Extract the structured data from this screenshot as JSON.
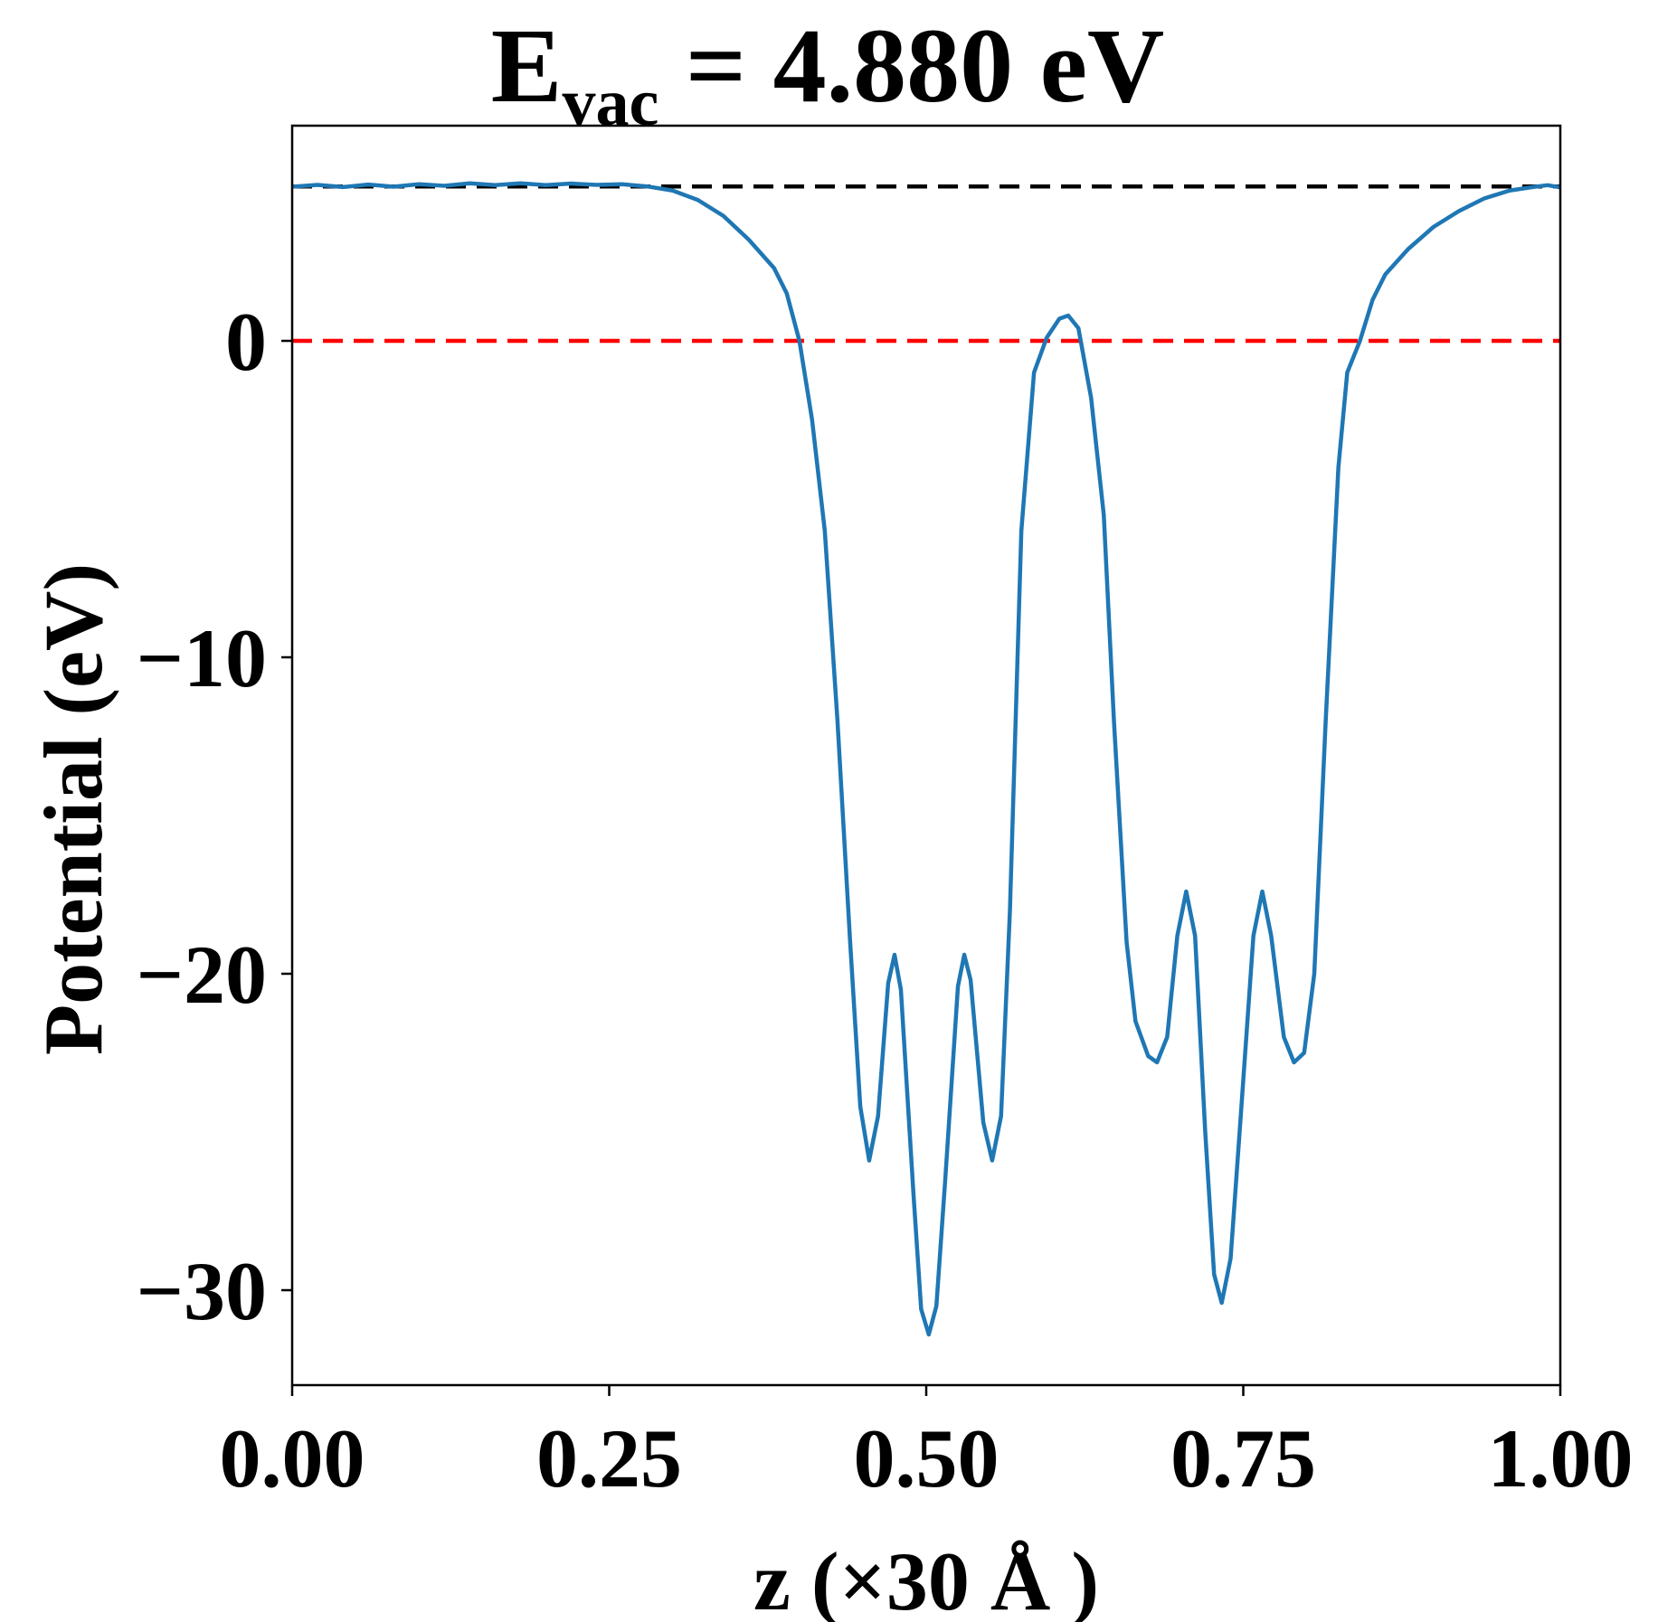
{
  "chart_data": {
    "type": "line",
    "title_main": "E",
    "title_sub": "vac",
    "title_rest": " = 4.880 eV",
    "xlabel": "z (×30 Å )",
    "ylabel": "Potential (eV)",
    "xlim": [
      0.0,
      1.0
    ],
    "ylim": [
      -33,
      6.8
    ],
    "x_ticks": [
      0.0,
      0.25,
      0.5,
      0.75,
      1.0
    ],
    "x_tick_labels": [
      "0.00",
      "0.25",
      "0.50",
      "0.75",
      "1.00"
    ],
    "y_ticks": [
      0,
      -10,
      -20,
      -30
    ],
    "y_tick_labels": [
      "0",
      "−10",
      "−20",
      "−30"
    ],
    "grid": false,
    "reference_lines": [
      {
        "y": 4.88,
        "color": "#000000",
        "style": "dashed"
      },
      {
        "y": 0.0,
        "color": "#ff0000",
        "style": "dashed"
      }
    ],
    "series": [
      {
        "color": "#1f77b4",
        "points": [
          [
            0.0,
            4.87
          ],
          [
            0.02,
            4.93
          ],
          [
            0.04,
            4.86
          ],
          [
            0.06,
            4.94
          ],
          [
            0.08,
            4.87
          ],
          [
            0.1,
            4.95
          ],
          [
            0.12,
            4.9
          ],
          [
            0.14,
            4.98
          ],
          [
            0.16,
            4.92
          ],
          [
            0.18,
            4.98
          ],
          [
            0.2,
            4.92
          ],
          [
            0.22,
            4.97
          ],
          [
            0.24,
            4.93
          ],
          [
            0.26,
            4.95
          ],
          [
            0.28,
            4.88
          ],
          [
            0.3,
            4.75
          ],
          [
            0.32,
            4.45
          ],
          [
            0.34,
            3.95
          ],
          [
            0.36,
            3.2
          ],
          [
            0.38,
            2.3
          ],
          [
            0.39,
            1.5
          ],
          [
            0.4,
            0.0
          ],
          [
            0.41,
            -2.5
          ],
          [
            0.42,
            -6.0
          ],
          [
            0.43,
            -12.0
          ],
          [
            0.44,
            -19.0
          ],
          [
            0.448,
            -24.2
          ],
          [
            0.455,
            -25.9
          ],
          [
            0.462,
            -24.5
          ],
          [
            0.47,
            -20.3
          ],
          [
            0.475,
            -19.4
          ],
          [
            0.48,
            -20.5
          ],
          [
            0.49,
            -27.0
          ],
          [
            0.496,
            -30.6
          ],
          [
            0.502,
            -31.4
          ],
          [
            0.508,
            -30.5
          ],
          [
            0.515,
            -26.5
          ],
          [
            0.525,
            -20.4
          ],
          [
            0.53,
            -19.4
          ],
          [
            0.535,
            -20.2
          ],
          [
            0.545,
            -24.7
          ],
          [
            0.552,
            -25.9
          ],
          [
            0.559,
            -24.5
          ],
          [
            0.566,
            -18.0
          ],
          [
            0.575,
            -6.0
          ],
          [
            0.585,
            -1.0
          ],
          [
            0.595,
            0.1
          ],
          [
            0.605,
            0.7
          ],
          [
            0.612,
            0.8
          ],
          [
            0.62,
            0.4
          ],
          [
            0.63,
            -1.8
          ],
          [
            0.64,
            -5.5
          ],
          [
            0.648,
            -12.0
          ],
          [
            0.658,
            -19.0
          ],
          [
            0.665,
            -21.5
          ],
          [
            0.675,
            -22.6
          ],
          [
            0.682,
            -22.8
          ],
          [
            0.69,
            -22.0
          ],
          [
            0.698,
            -18.8
          ],
          [
            0.705,
            -17.4
          ],
          [
            0.712,
            -18.8
          ],
          [
            0.72,
            -25.0
          ],
          [
            0.727,
            -29.5
          ],
          [
            0.733,
            -30.4
          ],
          [
            0.74,
            -29.0
          ],
          [
            0.748,
            -24.5
          ],
          [
            0.758,
            -18.8
          ],
          [
            0.765,
            -17.4
          ],
          [
            0.772,
            -18.8
          ],
          [
            0.782,
            -22.0
          ],
          [
            0.79,
            -22.8
          ],
          [
            0.798,
            -22.5
          ],
          [
            0.806,
            -20.0
          ],
          [
            0.815,
            -12.0
          ],
          [
            0.825,
            -4.0
          ],
          [
            0.832,
            -1.0
          ],
          [
            0.842,
            0.0
          ],
          [
            0.852,
            1.3
          ],
          [
            0.862,
            2.1
          ],
          [
            0.88,
            2.9
          ],
          [
            0.9,
            3.6
          ],
          [
            0.92,
            4.1
          ],
          [
            0.94,
            4.5
          ],
          [
            0.96,
            4.75
          ],
          [
            0.98,
            4.87
          ],
          [
            0.99,
            4.92
          ],
          [
            1.0,
            4.85
          ]
        ]
      }
    ]
  }
}
